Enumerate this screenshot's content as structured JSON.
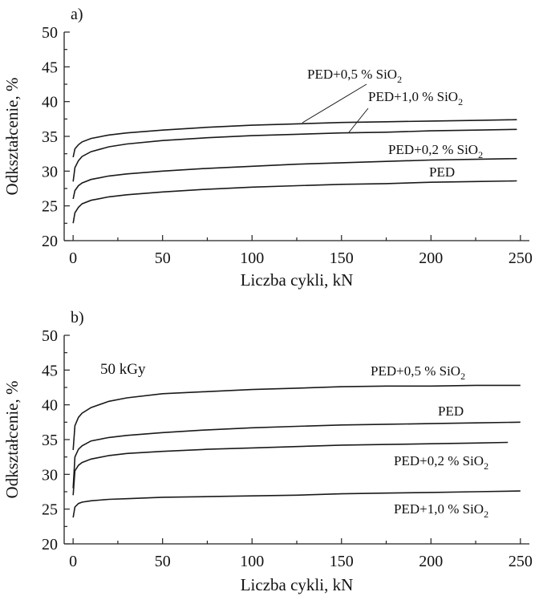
{
  "chart_data": [
    {
      "type": "line",
      "panel_label": "a)",
      "annotation": "",
      "xlabel": "Liczba cykli, kN",
      "ylabel": "Odkształcenie, %",
      "xlim": [
        -5,
        255
      ],
      "ylim": [
        20,
        50
      ],
      "xticks": [
        0,
        50,
        100,
        150,
        200,
        250
      ],
      "yticks": [
        20,
        25,
        30,
        35,
        40,
        45,
        50
      ],
      "series": [
        {
          "name": "PED+0,5 % SiO₂",
          "label_main": "PED+0,5 % SiO",
          "label_sub": "2",
          "x": [
            0,
            1,
            3,
            5,
            10,
            20,
            30,
            50,
            75,
            100,
            125,
            150,
            175,
            200,
            225,
            248
          ],
          "y": [
            32.0,
            33.2,
            33.8,
            34.2,
            34.7,
            35.2,
            35.5,
            35.9,
            36.3,
            36.6,
            36.8,
            37.0,
            37.1,
            37.2,
            37.3,
            37.4
          ]
        },
        {
          "name": "PED+1,0 % SiO₂",
          "label_main": "PED+1,0 % SiO",
          "label_sub": "2",
          "x": [
            0,
            1,
            3,
            5,
            10,
            20,
            30,
            50,
            75,
            100,
            125,
            150,
            175,
            200,
            225,
            248
          ],
          "y": [
            28.5,
            30.5,
            31.5,
            32.1,
            32.8,
            33.5,
            33.9,
            34.4,
            34.8,
            35.1,
            35.3,
            35.5,
            35.6,
            35.8,
            35.9,
            36.0
          ]
        },
        {
          "name": "PED+0,2 % SiO₂",
          "label_main": "PED+0,2 % SiO",
          "label_sub": "2",
          "x": [
            0,
            1,
            3,
            5,
            10,
            20,
            30,
            50,
            75,
            100,
            125,
            150,
            175,
            200,
            225,
            248
          ],
          "y": [
            26.0,
            27.2,
            27.9,
            28.3,
            28.8,
            29.3,
            29.6,
            30.0,
            30.4,
            30.7,
            31.0,
            31.2,
            31.4,
            31.6,
            31.7,
            31.8
          ]
        },
        {
          "name": "PED",
          "label_main": "PED",
          "label_sub": "",
          "x": [
            0,
            1,
            3,
            5,
            10,
            20,
            30,
            50,
            75,
            100,
            125,
            150,
            175,
            200,
            225,
            248
          ],
          "y": [
            22.5,
            24.0,
            24.8,
            25.3,
            25.8,
            26.3,
            26.6,
            27.0,
            27.4,
            27.7,
            27.9,
            28.1,
            28.2,
            28.4,
            28.5,
            28.6
          ]
        }
      ]
    },
    {
      "type": "line",
      "panel_label": "b)",
      "annotation": "50 kGy",
      "xlabel": "Liczba cykli, kN",
      "ylabel": "Odkształcenie, %",
      "xlim": [
        -5,
        255
      ],
      "ylim": [
        20,
        50
      ],
      "xticks": [
        0,
        50,
        100,
        150,
        200,
        250
      ],
      "yticks": [
        20,
        25,
        30,
        35,
        40,
        45,
        50
      ],
      "series": [
        {
          "name": "PED+0,5 % SiO₂",
          "label_main": "PED+0,5 % SiO",
          "label_sub": "2",
          "x": [
            0,
            1,
            3,
            5,
            10,
            20,
            30,
            50,
            75,
            100,
            125,
            150,
            175,
            200,
            225,
            250
          ],
          "y": [
            33.5,
            37.0,
            38.2,
            38.8,
            39.6,
            40.5,
            41.0,
            41.6,
            41.9,
            42.2,
            42.4,
            42.6,
            42.7,
            42.7,
            42.8,
            42.8
          ]
        },
        {
          "name": "PED",
          "label_main": "PED",
          "label_sub": "",
          "x": [
            0,
            1,
            3,
            5,
            10,
            20,
            30,
            50,
            75,
            100,
            125,
            150,
            175,
            200,
            225,
            250
          ],
          "y": [
            28.0,
            32.5,
            33.6,
            34.1,
            34.8,
            35.3,
            35.6,
            36.0,
            36.4,
            36.7,
            36.9,
            37.1,
            37.2,
            37.3,
            37.4,
            37.5
          ]
        },
        {
          "name": "PED+0,2 % SiO₂",
          "label_main": "PED+0,2 % SiO",
          "label_sub": "2",
          "x": [
            0,
            1,
            3,
            5,
            10,
            20,
            30,
            50,
            75,
            100,
            125,
            150,
            175,
            200,
            225,
            243
          ],
          "y": [
            27.0,
            30.5,
            31.3,
            31.7,
            32.2,
            32.7,
            33.0,
            33.3,
            33.6,
            33.8,
            34.0,
            34.2,
            34.3,
            34.4,
            34.5,
            34.6
          ]
        },
        {
          "name": "PED+1,0 % SiO₂",
          "label_main": "PED+1,0 % SiO",
          "label_sub": "2",
          "x": [
            0,
            1,
            3,
            5,
            10,
            20,
            30,
            50,
            75,
            100,
            125,
            150,
            175,
            200,
            225,
            250
          ],
          "y": [
            23.8,
            25.3,
            25.8,
            26.0,
            26.2,
            26.4,
            26.5,
            26.7,
            26.8,
            26.9,
            27.0,
            27.2,
            27.3,
            27.4,
            27.5,
            27.6
          ]
        }
      ]
    }
  ]
}
